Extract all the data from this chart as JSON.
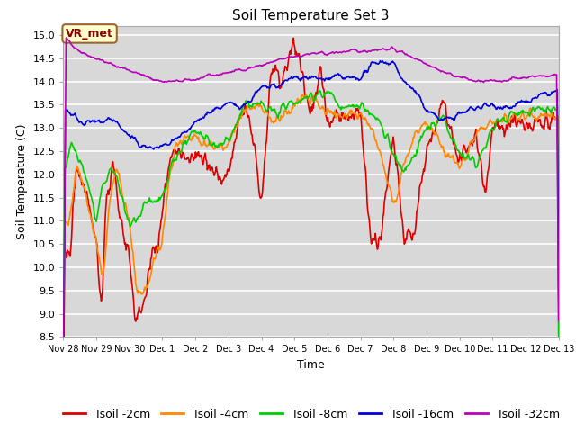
{
  "title": "Soil Temperature Set 3",
  "xlabel": "Time",
  "ylabel": "Soil Temperature (C)",
  "ylim": [
    8.5,
    15.2
  ],
  "yticks": [
    8.5,
    9.0,
    9.5,
    10.0,
    10.5,
    11.0,
    11.5,
    12.0,
    12.5,
    13.0,
    13.5,
    14.0,
    14.5,
    15.0
  ],
  "plot_bg_color": "#d8d8d8",
  "grid_color": "#ffffff",
  "series_colors": {
    "Tsoil -2cm": "#dd0000",
    "Tsoil -4cm": "#ff8800",
    "Tsoil -8cm": "#00cc00",
    "Tsoil -16cm": "#0000dd",
    "Tsoil -32cm": "#bb00bb"
  },
  "legend_label": "VR_met",
  "legend_box_facecolor": "#ffffcc",
  "legend_box_edgecolor": "#996633",
  "n_points": 720,
  "xtick_labels": [
    "Nov 28",
    "Nov 29",
    "Nov 30",
    "Dec 1",
    "Dec 2",
    "Dec 3",
    "Dec 4",
    "Dec 5",
    "Dec 6",
    "Dec 7",
    "Dec 8",
    "Dec 9",
    "Dec 10",
    "Dec 11",
    "Dec 12",
    "Dec 13"
  ],
  "title_fontsize": 11,
  "axis_label_fontsize": 9,
  "tick_fontsize": 8,
  "legend_fontsize": 9,
  "linewidth": 1.2
}
